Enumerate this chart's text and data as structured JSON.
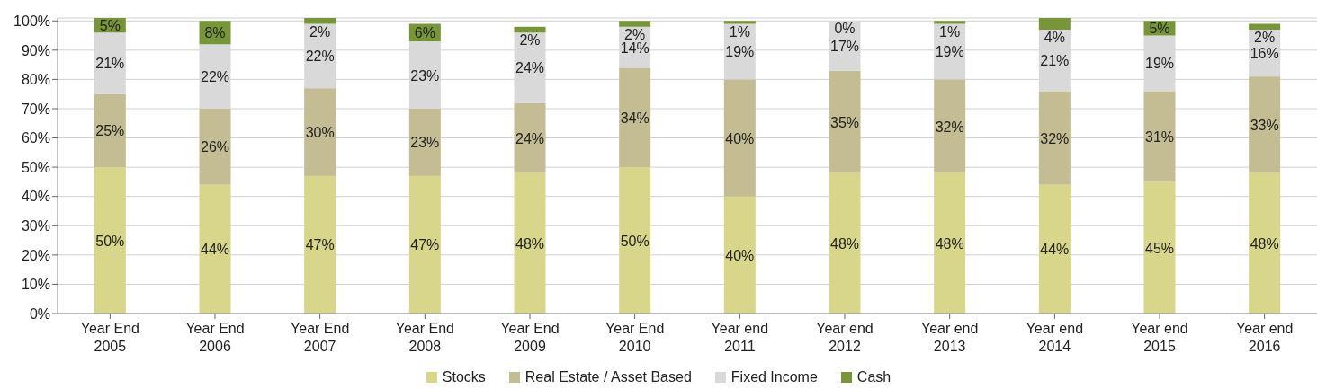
{
  "chart_data": {
    "type": "bar",
    "stacked": true,
    "categories": [
      "Year End 2005",
      "Year End 2006",
      "Year End 2007",
      "Year End 2008",
      "Year End 2009",
      "Year End 2010",
      "Year end 2011",
      "Year end 2012",
      "Year end 2013",
      "Year end 2014",
      "Year end 2015",
      "Year end 2016"
    ],
    "series": [
      {
        "name": "Stocks",
        "color": "#d8d68a",
        "values": [
          50,
          44,
          47,
          47,
          48,
          50,
          40,
          48,
          48,
          44,
          45,
          48
        ],
        "value_labels": [
          "50%",
          "44%",
          "47%",
          "47%",
          "48%",
          "50%",
          "40%",
          "48%",
          "48%",
          "44%",
          "45%",
          "48%"
        ]
      },
      {
        "name": "Real Estate / Asset Based",
        "color": "#c4bc92",
        "values": [
          25,
          26,
          30,
          23,
          24,
          34,
          40,
          35,
          32,
          32,
          31,
          33
        ],
        "value_labels": [
          "25%",
          "26%",
          "30%",
          "23%",
          "24%",
          "34%",
          "40%",
          "35%",
          "32%",
          "32%",
          "31%",
          "33%"
        ]
      },
      {
        "name": "Fixed Income",
        "color": "#d9d9d9",
        "values": [
          21,
          22,
          22,
          23,
          24,
          14,
          19,
          17,
          19,
          21,
          19,
          16
        ],
        "value_labels": [
          "21%",
          "22%",
          "22%",
          "23%",
          "24%",
          "14%",
          "19%",
          "17%",
          "19%",
          "21%",
          "19%",
          "16%"
        ]
      },
      {
        "name": "Cash",
        "color": "#77963a",
        "values": [
          5,
          8,
          2,
          6,
          2,
          2,
          1,
          0,
          1,
          4,
          5,
          2
        ],
        "value_labels": [
          "5%",
          "8%",
          "2%",
          "6%",
          "2%",
          "2%",
          "1%",
          "0%",
          "1%",
          "4%",
          "5%",
          "2%"
        ]
      }
    ],
    "ylim": [
      0,
      101
    ],
    "yticks": [
      {
        "value": 0,
        "label": "0%"
      },
      {
        "value": 10,
        "label": "10%"
      },
      {
        "value": 20,
        "label": "20%"
      },
      {
        "value": 30,
        "label": "30%"
      },
      {
        "value": 40,
        "label": "40%"
      },
      {
        "value": 50,
        "label": "50%"
      },
      {
        "value": 60,
        "label": "60%"
      },
      {
        "value": 70,
        "label": "70%"
      },
      {
        "value": 80,
        "label": "80%"
      },
      {
        "value": 90,
        "label": "90%"
      },
      {
        "value": 100,
        "label": "100%"
      }
    ],
    "grid": "y",
    "legend": "bottom"
  }
}
